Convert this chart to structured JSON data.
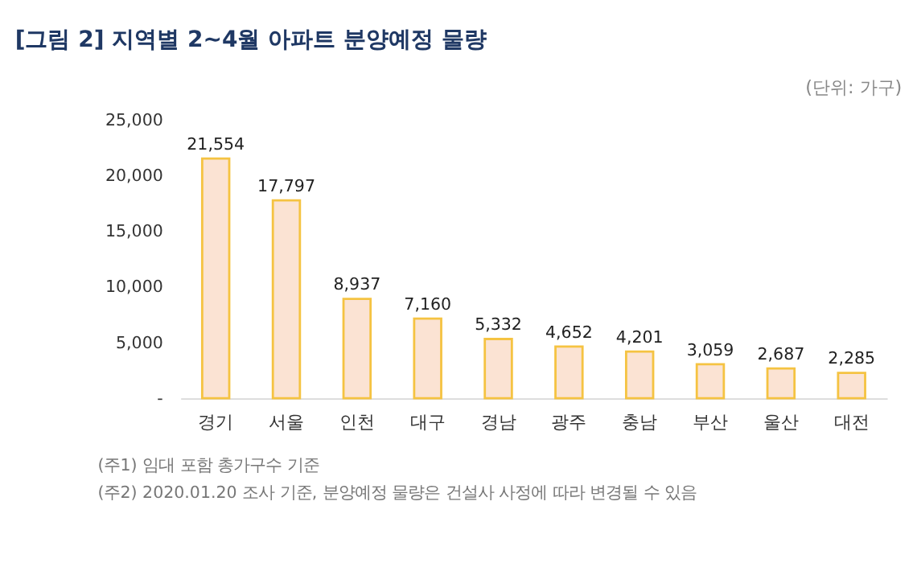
{
  "chart_data": {
    "type": "bar",
    "title": "[그림 2] 지역별 2~4월 아파트 분양예정 물량",
    "subtitle": "(단위: 가구)",
    "categories": [
      "경기",
      "서울",
      "인천",
      "대구",
      "경남",
      "광주",
      "충남",
      "부산",
      "울산",
      "대전"
    ],
    "values": [
      21554,
      17797,
      8937,
      7160,
      5332,
      4652,
      4201,
      3059,
      2687,
      2285
    ],
    "color": "#fbe3d3",
    "grid": false,
    "value_labels": [
      "21,554",
      "17,797",
      "8,937",
      "7,160",
      "5,332",
      "4,652",
      "4,201",
      "3,059",
      "2,687",
      "2,285"
    ],
    "ylim": [
      0,
      25000
    ],
    "yticks": [
      {
        "value": 0,
        "label": "-"
      },
      {
        "value": 5000,
        "label": "5,000"
      },
      {
        "value": 10000,
        "label": "10,000"
      },
      {
        "value": 15000,
        "label": "15,000"
      },
      {
        "value": 20000,
        "label": "20,000"
      },
      {
        "value": 25000,
        "label": "25,000"
      }
    ],
    "annotations": [
      "(주1) 임대 포함 총가구수 기준",
      "(주2) 2020.01.20 조사 기준, 분양예정 물량은 건설사 사정에 따라 변경될 수 있음"
    ]
  }
}
